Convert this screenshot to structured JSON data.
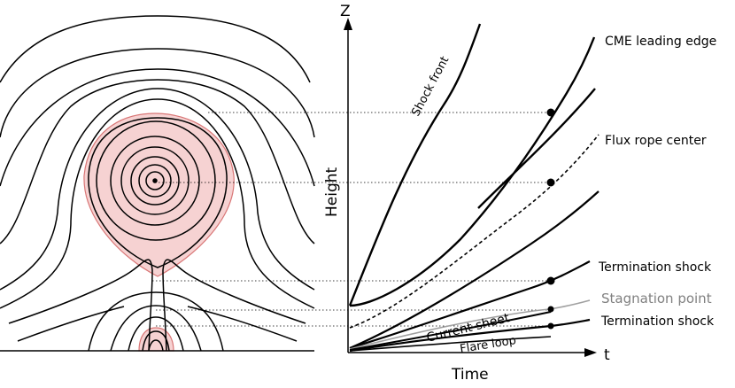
{
  "diagram": {
    "axes": {
      "vertical_symbol": "Z",
      "vertical_label": "Height",
      "horizontal_symbol": "t",
      "horizontal_label": "Time"
    },
    "curve_labels": {
      "shock_front": "Shock front",
      "cme_leading_edge": "CME leading edge",
      "flux_rope_center": "Flux rope center",
      "termination_shock_upper": "Termination shock",
      "stagnation_point": "Stagnation point",
      "current_sheet": "Current sheet",
      "termination_shock_lower": "Termination shock",
      "flare_loop": "Flare loop"
    },
    "colors": {
      "flux_rope_fill": "#f6d2d2",
      "flux_rope_outline": "#d97777",
      "stagnation_line": "#a0a0a0",
      "ink": "#000000"
    }
  }
}
